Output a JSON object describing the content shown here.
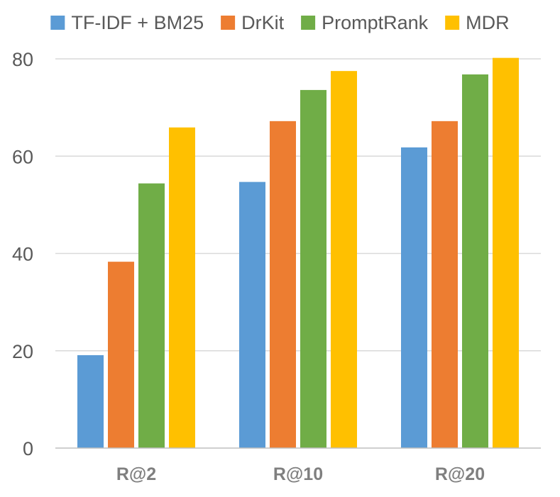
{
  "chart_data": {
    "type": "bar",
    "title": "",
    "xlabel": "",
    "ylabel": "",
    "categories": [
      "R@2",
      "R@10",
      "R@20"
    ],
    "series": [
      {
        "name": "TF-IDF + BM25",
        "color": "#5b9bd5",
        "values": [
          19.1,
          54.7,
          61.8
        ]
      },
      {
        "name": "DrKit",
        "color": "#ed7d31",
        "values": [
          38.3,
          67.2,
          67.2
        ]
      },
      {
        "name": "PromptRank",
        "color": "#70ad47",
        "values": [
          54.4,
          73.6,
          76.8
        ]
      },
      {
        "name": "MDR",
        "color": "#ffc000",
        "values": [
          65.9,
          77.5,
          80.2
        ]
      }
    ],
    "ylim": [
      0,
      80
    ],
    "yticks": [
      0,
      20,
      40,
      60,
      80
    ],
    "grid": true,
    "legend": "top"
  }
}
